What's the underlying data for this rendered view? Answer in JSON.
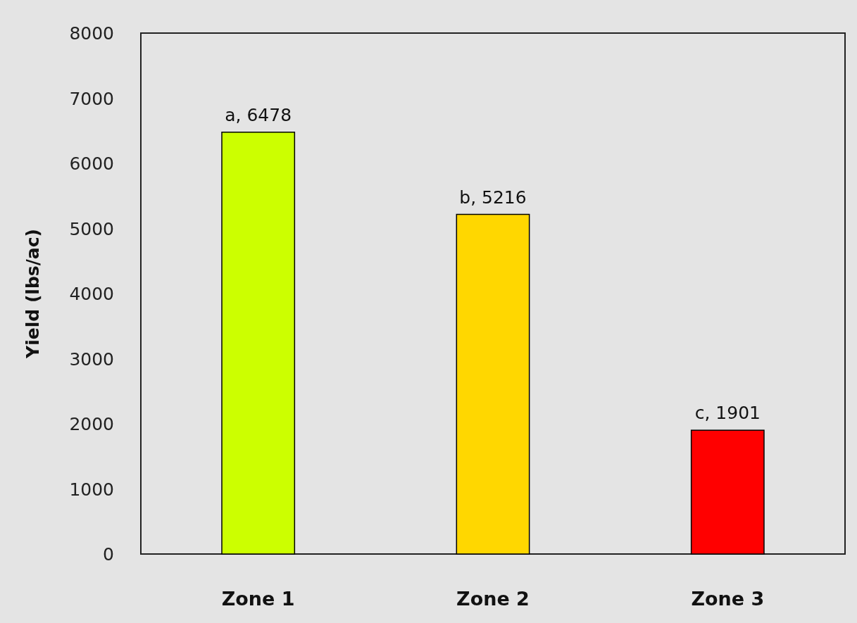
{
  "chart_data": {
    "type": "bar",
    "ylabel": "Yield (lbs/ac)",
    "categories": [
      "Zone 1",
      "Zone 2",
      "Zone 3"
    ],
    "values": [
      6478,
      5216,
      1901
    ],
    "colors": [
      "#ccff00",
      "#ffd700",
      "#ff0000"
    ],
    "value_labels": [
      "a, 6478",
      "b, 5216",
      "c, 1901"
    ],
    "ylim": [
      0,
      8000
    ],
    "yticks": [
      0,
      1000,
      2000,
      3000,
      4000,
      5000,
      6000,
      7000,
      8000
    ]
  }
}
